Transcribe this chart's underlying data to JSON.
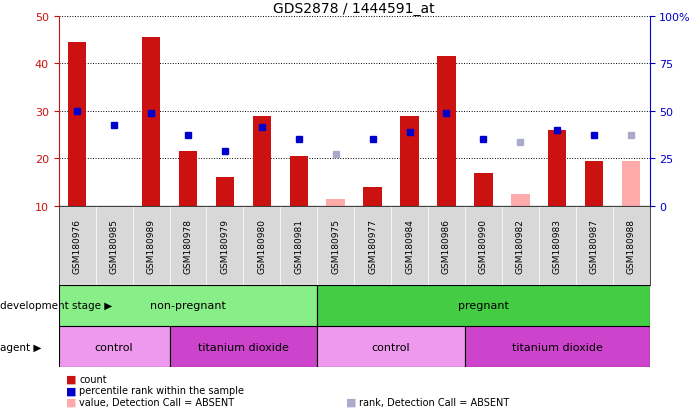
{
  "title": "GDS2878 / 1444591_at",
  "samples": [
    "GSM180976",
    "GSM180985",
    "GSM180989",
    "GSM180978",
    "GSM180979",
    "GSM180980",
    "GSM180981",
    "GSM180975",
    "GSM180977",
    "GSM180984",
    "GSM180986",
    "GSM180990",
    "GSM180982",
    "GSM180983",
    "GSM180987",
    "GSM180988"
  ],
  "red_bars": [
    44.5,
    null,
    45.5,
    21.5,
    16.0,
    29.0,
    20.5,
    null,
    14.0,
    29.0,
    41.5,
    17.0,
    null,
    26.0,
    19.5,
    null
  ],
  "pink_bars": [
    null,
    null,
    null,
    null,
    null,
    null,
    null,
    11.5,
    null,
    null,
    null,
    null,
    12.5,
    null,
    null,
    19.5
  ],
  "blue_squares": [
    30.0,
    27.0,
    29.5,
    25.0,
    21.5,
    26.5,
    24.0,
    null,
    24.0,
    25.5,
    29.5,
    24.0,
    null,
    26.0,
    25.0,
    null
  ],
  "light_blue_squares": [
    null,
    null,
    null,
    null,
    null,
    null,
    null,
    21.0,
    null,
    null,
    null,
    null,
    23.5,
    null,
    null,
    25.0
  ],
  "ylim_left": [
    10,
    50
  ],
  "ylim_right": [
    0,
    100
  ],
  "yticks_left": [
    10,
    20,
    30,
    40,
    50
  ],
  "yticks_right": [
    0,
    25,
    50,
    75,
    100
  ],
  "development_stage_groups": [
    {
      "label": "non-pregnant",
      "start": 0,
      "end": 7,
      "color": "#88ee88"
    },
    {
      "label": "pregnant",
      "start": 7,
      "end": 16,
      "color": "#44cc44"
    }
  ],
  "agent_groups": [
    {
      "label": "control",
      "start": 0,
      "end": 3,
      "color": "#ee99ee"
    },
    {
      "label": "titanium dioxide",
      "start": 3,
      "end": 7,
      "color": "#cc44cc"
    },
    {
      "label": "control",
      "start": 7,
      "end": 11,
      "color": "#ee99ee"
    },
    {
      "label": "titanium dioxide",
      "start": 11,
      "end": 16,
      "color": "#cc44cc"
    }
  ],
  "red_color": "#cc1111",
  "pink_color": "#ffaaaa",
  "blue_color": "#0000cc",
  "light_blue_color": "#aaaacc",
  "bar_width": 0.5,
  "legend_items": [
    {
      "label": "count",
      "color": "#cc1111"
    },
    {
      "label": "percentile rank within the sample",
      "color": "#0000cc"
    },
    {
      "label": "value, Detection Call = ABSENT",
      "color": "#ffaaaa"
    },
    {
      "label": "rank, Detection Call = ABSENT",
      "color": "#aaaacc"
    }
  ],
  "dev_stage_label": "development stage",
  "agent_label": "agent",
  "bg_color": "#d8d8d8"
}
